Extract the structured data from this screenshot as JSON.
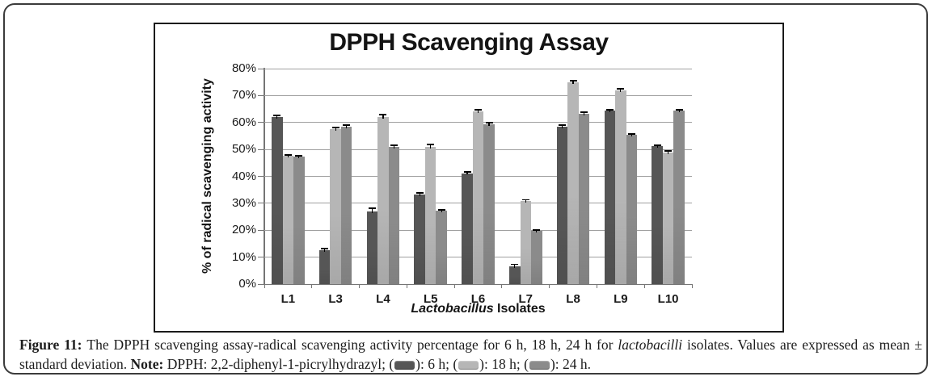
{
  "chart_data": {
    "type": "bar",
    "title": "DPPH Scavenging Assay",
    "ylabel": "% of radical scavenging activity",
    "xlabel": "Lactobacillus Isolates",
    "xlabel_italic_part": "Lactobacillus",
    "xlabel_regular_part": " Isolates",
    "categories": [
      "L1",
      "L3",
      "L4",
      "L5",
      "L6",
      "L7",
      "L8",
      "L9",
      "L10"
    ],
    "series": [
      {
        "name": "6 h",
        "color": "#565656",
        "values": [
          62,
          12.5,
          27,
          33.2,
          41.2,
          6.5,
          58.5,
          64.5,
          51.2
        ],
        "errors": [
          0.7,
          0.6,
          1.2,
          0.6,
          0.4,
          0.8,
          0.6,
          0.3,
          0.3
        ]
      },
      {
        "name": "18 h",
        "color": "#b6b6b6",
        "values": [
          47.5,
          57.5,
          62,
          51,
          64.2,
          30.8,
          75,
          72,
          48.8
        ],
        "errors": [
          0.4,
          0.7,
          0.8,
          0.7,
          0.6,
          0.5,
          0.4,
          0.4,
          0.5
        ]
      },
      {
        "name": "24 h",
        "color": "#8b8b8b",
        "values": [
          47.2,
          58.3,
          51,
          27.2,
          59.4,
          19.7,
          63.3,
          55.4,
          64.4
        ],
        "errors": [
          0.4,
          0.8,
          0.4,
          0.4,
          0.5,
          0.4,
          0.4,
          0.4,
          0.4
        ]
      }
    ],
    "ylim": [
      0,
      80
    ],
    "ytick_labels": [
      "0%",
      "10%",
      "20%",
      "30%",
      "40%",
      "50%",
      "60%",
      "70%",
      "80%"
    ],
    "grid": true,
    "legend_position": "in-caption"
  },
  "colors": {
    "gridline": "#a0a0a0",
    "axis": "#757575",
    "error_bar": "#000000",
    "panel_border": "#1a1a1a",
    "frame_border": "#3b3b3b",
    "text": "#1a1a1a"
  },
  "caption": {
    "segments": [
      {
        "text": "Figure 11: ",
        "style": "bold"
      },
      {
        "text": "The DPPH scavenging assay-radical scavenging activity percentage for 6 h, 18 h, 24 h for ",
        "style": "normal"
      },
      {
        "text": "lactobacilli",
        "style": "italic"
      },
      {
        "text": " isolates. Values are expressed as mean ± standard deviation. ",
        "style": "normal"
      },
      {
        "text": "Note:",
        "style": "bold"
      },
      {
        "text": " DPPH: 2,2-diphenyl-1-picrylhydrazyl; (",
        "style": "normal"
      },
      {
        "swatch": 0
      },
      {
        "text": "): 6 h; (",
        "style": "normal"
      },
      {
        "swatch": 1
      },
      {
        "text": "): 18 h; (",
        "style": "normal"
      },
      {
        "swatch": 2
      },
      {
        "text": "): 24 h.",
        "style": "normal"
      }
    ]
  }
}
